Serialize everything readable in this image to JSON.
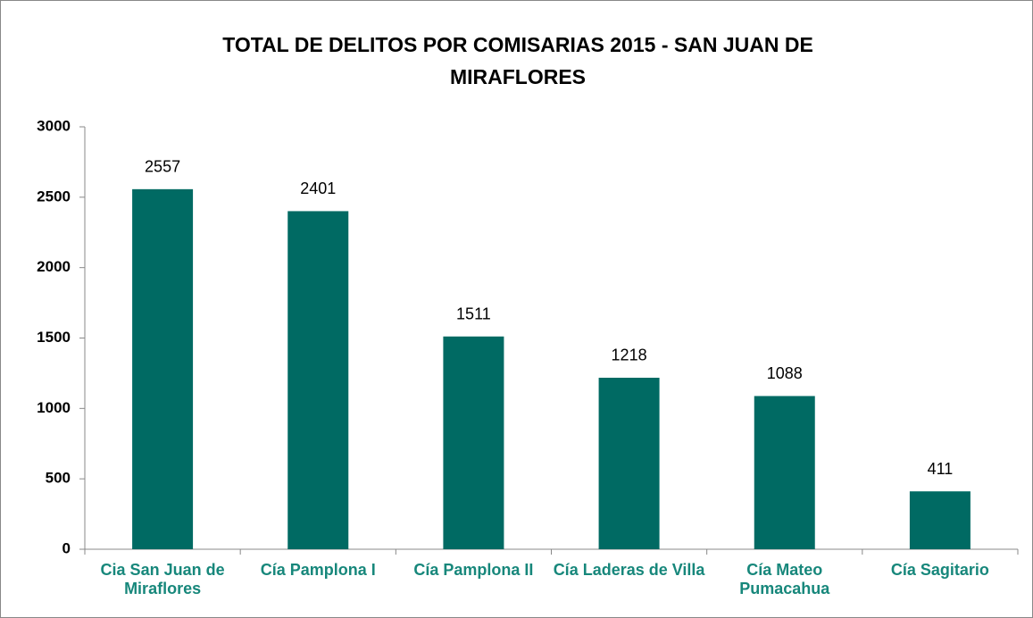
{
  "chart_data": {
    "type": "bar",
    "title": "TOTAL DE DELITOS POR COMISARIAS 2015 - SAN JUAN DE MIRAFLORES",
    "categories": [
      "Cia San Juan de Miraflores",
      "Cía Pamplona I",
      "Cía Pamplona II",
      "Cía Laderas de Villa",
      "Cía Mateo Pumacahua",
      "Cía Sagitario"
    ],
    "values": [
      2557,
      2401,
      1511,
      1218,
      1088,
      411
    ],
    "color": "#006a63",
    "ylim": [
      0,
      3000
    ],
    "yticks": [
      0,
      500,
      1000,
      1500,
      2000,
      2500,
      3000
    ],
    "grid": false
  }
}
